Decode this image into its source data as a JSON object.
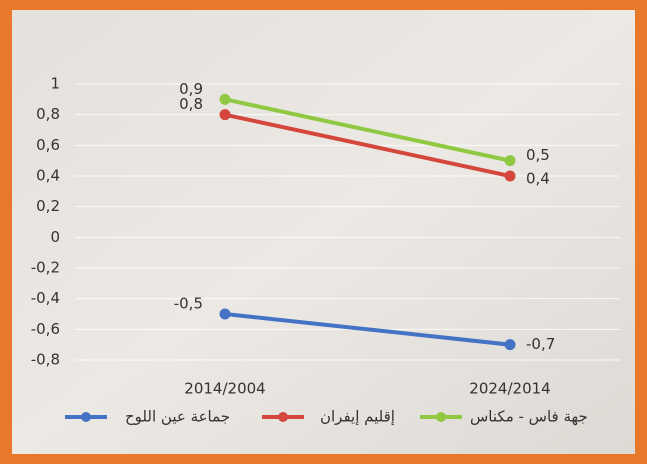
{
  "chart_data": {
    "type": "line",
    "categories": [
      "2014/2004",
      "2024/2014"
    ],
    "series": [
      {
        "name": "جماعة عين اللوح",
        "color": "#4472c4",
        "values": [
          -0.5,
          -0.7
        ],
        "value_labels": [
          "-0,5",
          "-0,7"
        ]
      },
      {
        "name": "إقليم إيفران",
        "color": "#d4473d",
        "values": [
          0.8,
          0.4
        ],
        "value_labels": [
          "0,8",
          "0,4"
        ]
      },
      {
        "name": "جهة فاس - مكناس",
        "color": "#90c841",
        "values": [
          0.9,
          0.5
        ],
        "value_labels": [
          "0,9",
          "0,5"
        ]
      }
    ],
    "ylim": [
      -0.8,
      1
    ],
    "yticks": [
      1,
      {
        "value": 0.8,
        "label": "0,8"
      },
      {
        "value": 0.6,
        "label": "0,6"
      },
      {
        "value": 0.4,
        "label": "0,4"
      },
      {
        "value": 0.2,
        "label": "0,2"
      },
      0,
      {
        "value": -0.2,
        "label": "-0,2"
      },
      {
        "value": -0.4,
        "label": "-0,4"
      },
      {
        "value": -0.6,
        "label": "-0,6"
      },
      {
        "value": -0.8,
        "label": "-0,8"
      }
    ],
    "grid": true,
    "legend": "bottom"
  }
}
